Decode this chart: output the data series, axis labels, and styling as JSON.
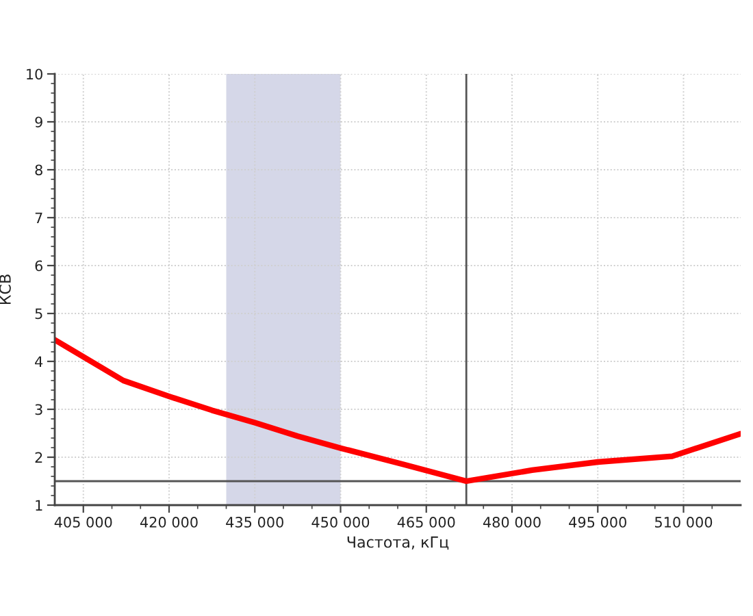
{
  "chart_data": {
    "type": "line",
    "xlabel": "Частота, кГц",
    "ylabel": "КСВ",
    "x": [
      400000,
      412000,
      420000,
      427500,
      435000,
      442500,
      450000,
      461000,
      472000,
      483500,
      495000,
      508000,
      520000
    ],
    "series": [
      {
        "color": "#ff0000",
        "values": [
          4.45,
          3.6,
          3.27,
          2.98,
          2.72,
          2.44,
          2.19,
          1.85,
          1.5,
          1.73,
          1.9,
          2.02,
          2.49
        ]
      }
    ],
    "xlim": [
      400000,
      520000
    ],
    "xticks": [
      {
        "value": 405000,
        "label": "405 000"
      },
      {
        "value": 410000,
        "label": null
      },
      {
        "value": 415000,
        "label": null
      },
      {
        "value": 420000,
        "label": "420 000"
      },
      {
        "value": 425000,
        "label": null
      },
      {
        "value": 430000,
        "label": null
      },
      {
        "value": 435000,
        "label": "435 000"
      },
      {
        "value": 440000,
        "label": null
      },
      {
        "value": 445000,
        "label": null
      },
      {
        "value": 450000,
        "label": "450 000"
      },
      {
        "value": 455000,
        "label": null
      },
      {
        "value": 460000,
        "label": null
      },
      {
        "value": 465000,
        "label": "465 000"
      },
      {
        "value": 470000,
        "label": null
      },
      {
        "value": 475000,
        "label": null
      },
      {
        "value": 480000,
        "label": "480 000"
      },
      {
        "value": 485000,
        "label": null
      },
      {
        "value": 490000,
        "label": null
      },
      {
        "value": 495000,
        "label": "495 000"
      },
      {
        "value": 500000,
        "label": null
      },
      {
        "value": 505000,
        "label": null
      },
      {
        "value": 510000,
        "label": "510 000"
      },
      {
        "value": 515000,
        "label": null
      }
    ],
    "ylim": [
      1,
      10
    ],
    "yticks": [
      1,
      {
        "value": 1.2,
        "label": null
      },
      {
        "value": 1.4,
        "label": null
      },
      {
        "value": 1.6,
        "label": null
      },
      {
        "value": 1.8,
        "label": null
      },
      2,
      {
        "value": 2.2,
        "label": null
      },
      {
        "value": 2.4,
        "label": null
      },
      {
        "value": 2.6,
        "label": null
      },
      {
        "value": 2.8,
        "label": null
      },
      3,
      {
        "value": 3.2,
        "label": null
      },
      {
        "value": 3.4,
        "label": null
      },
      {
        "value": 3.6,
        "label": null
      },
      {
        "value": 3.8,
        "label": null
      },
      4,
      {
        "value": 4.2,
        "label": null
      },
      {
        "value": 4.4,
        "label": null
      },
      {
        "value": 4.6,
        "label": null
      },
      {
        "value": 4.8,
        "label": null
      },
      5,
      {
        "value": 5.2,
        "label": null
      },
      {
        "value": 5.4,
        "label": null
      },
      {
        "value": 5.6,
        "label": null
      },
      {
        "value": 5.8,
        "label": null
      },
      6,
      {
        "value": 6.2,
        "label": null
      },
      {
        "value": 6.4,
        "label": null
      },
      {
        "value": 6.6,
        "label": null
      },
      {
        "value": 6.8,
        "label": null
      },
      7,
      {
        "value": 7.2,
        "label": null
      },
      {
        "value": 7.4,
        "label": null
      },
      {
        "value": 7.6,
        "label": null
      },
      {
        "value": 7.8,
        "label": null
      },
      8,
      {
        "value": 8.2,
        "label": null
      },
      {
        "value": 8.4,
        "label": null
      },
      {
        "value": 8.6,
        "label": null
      },
      {
        "value": 8.8,
        "label": null
      },
      9,
      {
        "value": 9.2,
        "label": null
      },
      {
        "value": 9.4,
        "label": null
      },
      {
        "value": 9.6,
        "label": null
      },
      {
        "value": 9.8,
        "label": null
      },
      10
    ],
    "ref_lines": [
      {
        "axis": "x",
        "value": 472000,
        "color": "#555555"
      },
      {
        "axis": "y",
        "value": 1.5,
        "color": "#555555"
      }
    ],
    "bands": [
      {
        "axis": "x",
        "from": 430000,
        "to": 450000,
        "color": "#d5d7e8"
      }
    ],
    "grid": true
  }
}
